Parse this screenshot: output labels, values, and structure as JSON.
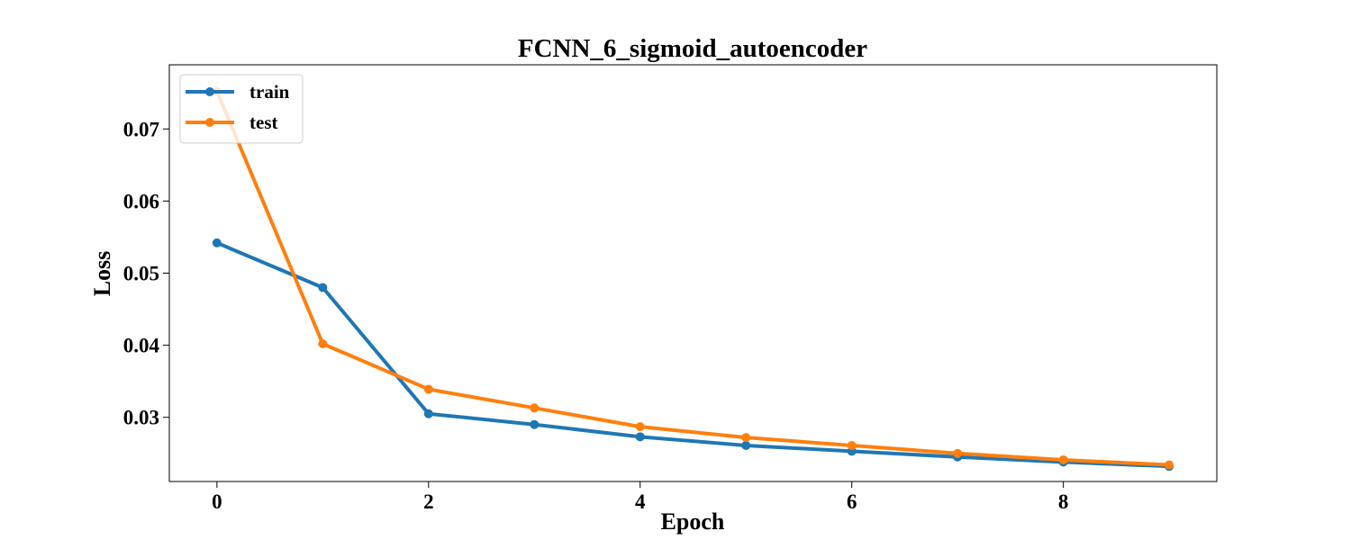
{
  "chart_data": {
    "type": "line",
    "title": "FCNN_6_sigmoid_autoencoder",
    "xlabel": "Epoch",
    "ylabel": "Loss",
    "x": [
      0,
      1,
      2,
      3,
      4,
      5,
      6,
      7,
      8,
      9
    ],
    "xlim": [
      -0.45,
      9.45
    ],
    "ylim": [
      0.0211,
      0.0789
    ],
    "xticks": [
      0,
      2,
      4,
      6,
      8
    ],
    "xtick_labels": [
      "0",
      "2",
      "4",
      "6",
      "8"
    ],
    "yticks": [
      0.03,
      0.04,
      0.05,
      0.06,
      0.07
    ],
    "ytick_labels": [
      "0.03",
      "0.04",
      "0.05",
      "0.06",
      "0.07"
    ],
    "grid": false,
    "legend_position": "top-left",
    "series": [
      {
        "name": "train",
        "color": "#1f77b4",
        "values": [
          0.0542,
          0.048,
          0.0305,
          0.029,
          0.0273,
          0.0261,
          0.0253,
          0.0245,
          0.0238,
          0.0232
        ]
      },
      {
        "name": "test",
        "color": "#ff7f0e",
        "values": [
          0.0752,
          0.0402,
          0.0339,
          0.0313,
          0.0287,
          0.0272,
          0.0261,
          0.025,
          0.0241,
          0.0234
        ]
      }
    ]
  }
}
